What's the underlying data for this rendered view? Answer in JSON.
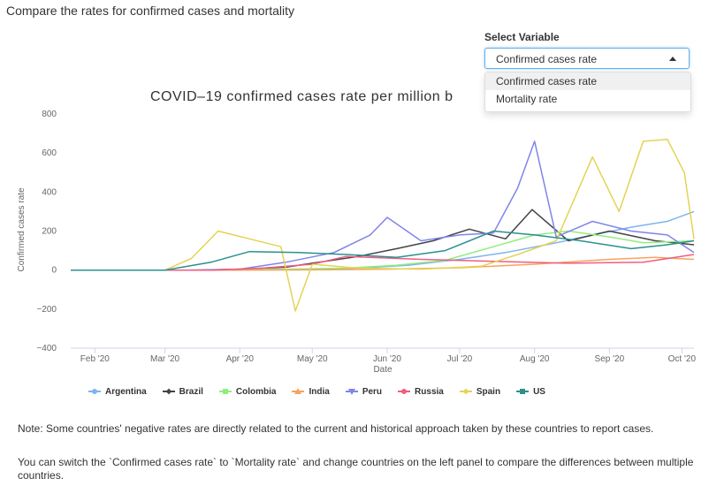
{
  "page": {
    "heading": "Compare the rates for confirmed cases and mortality"
  },
  "control": {
    "label": "Select Variable",
    "selected": "Confirmed cases rate",
    "options": [
      "Confirmed cases rate",
      "Mortality rate"
    ]
  },
  "notes": [
    "Note: Some countries' negative rates are directly related to the current and historical approach taken by these countries to report cases.",
    "You can switch the `Confirmed cases rate` to `Mortality rate` and change countries on the left panel to compare the differences between multiple countries."
  ],
  "chart_data": {
    "type": "line",
    "title": "COVID–19 confirmed cases rate per million b",
    "xlabel": "Date",
    "ylabel": "Confirmed cases rate",
    "ylim": [
      -400,
      800
    ],
    "yticks": [
      -400,
      -200,
      0,
      200,
      400,
      600,
      800
    ],
    "x_range": [
      "2020-01-22",
      "2020-10-06"
    ],
    "x_ticks": [
      {
        "date": "2020-02-01",
        "label": "Feb '20"
      },
      {
        "date": "2020-03-01",
        "label": "Mar '20"
      },
      {
        "date": "2020-04-01",
        "label": "Apr '20"
      },
      {
        "date": "2020-05-01",
        "label": "May '20"
      },
      {
        "date": "2020-06-01",
        "label": "Jun '20"
      },
      {
        "date": "2020-07-01",
        "label": "Jul '20"
      },
      {
        "date": "2020-08-01",
        "label": "Aug '20"
      },
      {
        "date": "2020-09-01",
        "label": "Sep '20"
      },
      {
        "date": "2020-10-01",
        "label": "Oct '20"
      }
    ],
    "grid": false,
    "legend_position": "bottom",
    "series": [
      {
        "name": "Argentina",
        "color": "#7cb5ec",
        "marker": "circle",
        "x": [
          "2020-01-22",
          "2020-03-10",
          "2020-04-01",
          "2020-05-01",
          "2020-05-20",
          "2020-06-10",
          "2020-07-01",
          "2020-07-20",
          "2020-08-10",
          "2020-08-25",
          "2020-09-10",
          "2020-09-25",
          "2020-10-06"
        ],
        "y": [
          0,
          0,
          2,
          4,
          10,
          25,
          55,
          90,
          140,
          180,
          220,
          250,
          300
        ]
      },
      {
        "name": "Brazil",
        "color": "#434348",
        "marker": "diamond",
        "x": [
          "2020-01-22",
          "2020-03-15",
          "2020-04-01",
          "2020-04-20",
          "2020-05-01",
          "2020-05-20",
          "2020-06-05",
          "2020-06-20",
          "2020-07-05",
          "2020-07-20",
          "2020-07-31",
          "2020-08-15",
          "2020-09-01",
          "2020-09-20",
          "2020-10-06"
        ],
        "y": [
          0,
          0,
          5,
          15,
          35,
          70,
          110,
          150,
          210,
          160,
          310,
          150,
          200,
          150,
          130
        ]
      },
      {
        "name": "Colombia",
        "color": "#90ed7d",
        "marker": "square",
        "x": [
          "2020-01-22",
          "2020-03-20",
          "2020-04-20",
          "2020-05-15",
          "2020-06-05",
          "2020-06-25",
          "2020-07-15",
          "2020-08-01",
          "2020-08-15",
          "2020-09-01",
          "2020-09-15",
          "2020-10-06"
        ],
        "y": [
          0,
          0,
          5,
          10,
          25,
          50,
          120,
          180,
          200,
          170,
          140,
          150
        ]
      },
      {
        "name": "India",
        "color": "#f7a35c",
        "marker": "triangle",
        "x": [
          "2020-01-22",
          "2020-04-01",
          "2020-05-01",
          "2020-06-01",
          "2020-07-01",
          "2020-08-01",
          "2020-09-01",
          "2020-09-20",
          "2020-10-06"
        ],
        "y": [
          0,
          0,
          1,
          5,
          12,
          30,
          55,
          65,
          55
        ]
      },
      {
        "name": "Peru",
        "color": "#8085e9",
        "marker": "triangle-down",
        "x": [
          "2020-01-22",
          "2020-03-10",
          "2020-04-01",
          "2020-04-20",
          "2020-05-10",
          "2020-05-25",
          "2020-06-01",
          "2020-06-15",
          "2020-07-01",
          "2020-07-15",
          "2020-07-25",
          "2020-08-01",
          "2020-08-10",
          "2020-08-25",
          "2020-09-10",
          "2020-09-25",
          "2020-10-06"
        ],
        "y": [
          0,
          0,
          5,
          40,
          90,
          180,
          270,
          150,
          180,
          190,
          420,
          660,
          170,
          250,
          200,
          180,
          90
        ]
      },
      {
        "name": "Russia",
        "color": "#f15c80",
        "marker": "circle",
        "x": [
          "2020-01-22",
          "2020-03-20",
          "2020-04-10",
          "2020-05-01",
          "2020-05-15",
          "2020-06-15",
          "2020-07-15",
          "2020-08-15",
          "2020-09-15",
          "2020-10-06"
        ],
        "y": [
          0,
          0,
          10,
          30,
          70,
          55,
          45,
          35,
          40,
          80
        ]
      },
      {
        "name": "Spain",
        "color": "#e4d354",
        "marker": "diamond",
        "x": [
          "2020-01-22",
          "2020-03-01",
          "2020-03-12",
          "2020-03-23",
          "2020-04-05",
          "2020-04-18",
          "2020-04-24",
          "2020-05-01",
          "2020-05-20",
          "2020-06-15",
          "2020-07-10",
          "2020-07-25",
          "2020-08-10",
          "2020-08-25",
          "2020-09-05",
          "2020-09-15",
          "2020-09-25",
          "2020-10-02",
          "2020-10-06"
        ],
        "y": [
          0,
          0,
          60,
          200,
          160,
          120,
          -210,
          30,
          10,
          5,
          20,
          80,
          150,
          580,
          300,
          660,
          670,
          500,
          160
        ]
      },
      {
        "name": "US",
        "color": "#2b908f",
        "marker": "square",
        "x": [
          "2020-01-22",
          "2020-03-01",
          "2020-03-20",
          "2020-04-05",
          "2020-04-25",
          "2020-05-15",
          "2020-06-05",
          "2020-06-25",
          "2020-07-15",
          "2020-08-01",
          "2020-08-20",
          "2020-09-10",
          "2020-09-25",
          "2020-10-06"
        ],
        "y": [
          0,
          0,
          40,
          95,
          90,
          80,
          65,
          100,
          200,
          180,
          150,
          110,
          130,
          150
        ]
      }
    ]
  }
}
